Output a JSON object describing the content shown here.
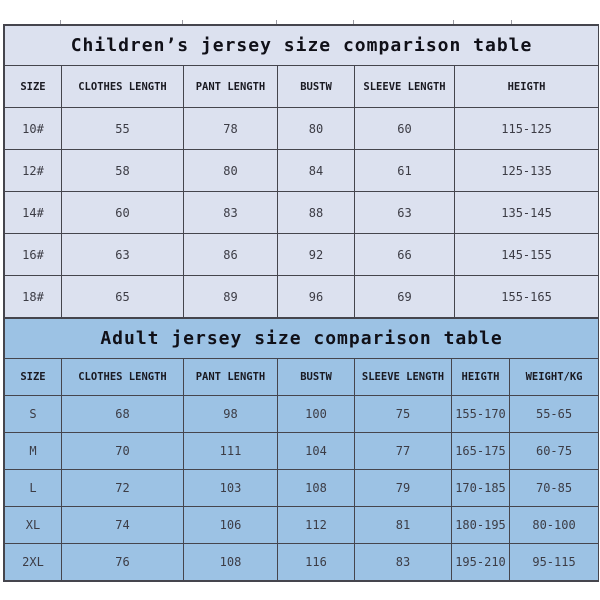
{
  "tables": {
    "children": {
      "title": "Children’s jersey size comparison table",
      "columns": [
        "SIZE",
        "CLOTHES LENGTH",
        "PANT LENGTH",
        "BUSTW",
        "SLEEVE LENGTH",
        "HEIGTH"
      ],
      "rows": [
        [
          "10#",
          "55",
          "78",
          "80",
          "60",
          "115-125"
        ],
        [
          "12#",
          "58",
          "80",
          "84",
          "61",
          "125-135"
        ],
        [
          "14#",
          "60",
          "83",
          "88",
          "63",
          "135-145"
        ],
        [
          "16#",
          "63",
          "86",
          "92",
          "66",
          "145-155"
        ],
        [
          "18#",
          "65",
          "89",
          "96",
          "69",
          "155-165"
        ]
      ]
    },
    "adult": {
      "title": "Adult jersey size comparison table",
      "columns": [
        "SIZE",
        "CLOTHES LENGTH",
        "PANT LENGTH",
        "BUSTW",
        "SLEEVE LENGTH",
        "HEIGTH",
        "WEIGHT/KG"
      ],
      "rows": [
        [
          "S",
          "68",
          "98",
          "100",
          "75",
          "155-170",
          "55-65"
        ],
        [
          "M",
          "70",
          "111",
          "104",
          "77",
          "165-175",
          "60-75"
        ],
        [
          "L",
          "72",
          "103",
          "108",
          "79",
          "170-185",
          "70-85"
        ],
        [
          "XL",
          "74",
          "106",
          "112",
          "81",
          "180-195",
          "80-100"
        ],
        [
          "2XL",
          "76",
          "108",
          "116",
          "83",
          "195-210",
          "95-115"
        ]
      ]
    }
  },
  "colors": {
    "page_bg": "#ffffff",
    "children_table_bg": "#dce1ef",
    "adult_table_bg": "#9cc2e4",
    "border": "#45454d",
    "title_text": "#101018",
    "data_text": "#3c3c45"
  }
}
